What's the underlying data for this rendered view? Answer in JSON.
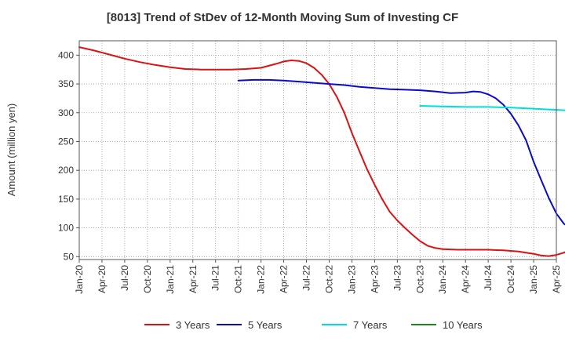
{
  "chart_data": {
    "type": "line",
    "title": "[8013]  Trend of StDev of 12-Month Moving Sum of Investing CF",
    "xlabel": "",
    "ylabel": "Amount (million yen)",
    "ylim": [
      45,
      425
    ],
    "yticks": [
      50,
      100,
      150,
      200,
      250,
      300,
      350,
      400
    ],
    "xlim": [
      "2020-01",
      "2025-04"
    ],
    "xticks": [
      "Jan-20",
      "Apr-20",
      "Jul-20",
      "Oct-20",
      "Jan-21",
      "Apr-21",
      "Jul-21",
      "Oct-21",
      "Jan-22",
      "Apr-22",
      "Jul-22",
      "Oct-22",
      "Jan-23",
      "Apr-23",
      "Jul-23",
      "Oct-23",
      "Jan-24",
      "Apr-24",
      "Jul-24",
      "Oct-24",
      "Jan-25",
      "Apr-25"
    ],
    "grid": true,
    "legend_position": "bottom",
    "series": [
      {
        "name": "3 Years",
        "color": "#dd1111",
        "points": [
          [
            "2020-01",
            414
          ],
          [
            "2020-03",
            408
          ],
          [
            "2020-05",
            401
          ],
          [
            "2020-07",
            394
          ],
          [
            "2020-09",
            388
          ],
          [
            "2020-11",
            383
          ],
          [
            "2021-01",
            379
          ],
          [
            "2021-03",
            376
          ],
          [
            "2021-05",
            375
          ],
          [
            "2021-07",
            375
          ],
          [
            "2021-09",
            375
          ],
          [
            "2021-11",
            376
          ],
          [
            "2022-01",
            378
          ],
          [
            "2022-03",
            385
          ],
          [
            "2022-04",
            389
          ],
          [
            "2022-05",
            391
          ],
          [
            "2022-06",
            390
          ],
          [
            "2022-07",
            386
          ],
          [
            "2022-08",
            378
          ],
          [
            "2022-09",
            366
          ],
          [
            "2022-10",
            350
          ],
          [
            "2022-11",
            328
          ],
          [
            "2022-12",
            300
          ],
          [
            "2023-01",
            265
          ],
          [
            "2023-02",
            233
          ],
          [
            "2023-03",
            202
          ],
          [
            "2023-04",
            175
          ],
          [
            "2023-05",
            150
          ],
          [
            "2023-06",
            128
          ],
          [
            "2023-07",
            113
          ],
          [
            "2023-08",
            100
          ],
          [
            "2023-09",
            88
          ],
          [
            "2023-10",
            77
          ],
          [
            "2023-11",
            69
          ],
          [
            "2023-12",
            65
          ],
          [
            "2024-01",
            63
          ],
          [
            "2024-03",
            62
          ],
          [
            "2024-05",
            62
          ],
          [
            "2024-07",
            62
          ],
          [
            "2024-09",
            61
          ],
          [
            "2024-11",
            59
          ],
          [
            "2025-01",
            55
          ],
          [
            "2025-02",
            52
          ],
          [
            "2025-03",
            51
          ],
          [
            "2025-04",
            53
          ],
          [
            "2025-05",
            57
          ],
          [
            "2025-06",
            63
          ],
          [
            "2025-07",
            70
          ],
          [
            "2025-08",
            77
          ]
        ]
      },
      {
        "name": "5 Years",
        "color": "#0a0acc",
        "points": [
          [
            "2021-10",
            356
          ],
          [
            "2021-12",
            357
          ],
          [
            "2022-02",
            357
          ],
          [
            "2022-04",
            356
          ],
          [
            "2022-06",
            354
          ],
          [
            "2022-08",
            352
          ],
          [
            "2022-10",
            350
          ],
          [
            "2022-12",
            348
          ],
          [
            "2023-02",
            345
          ],
          [
            "2023-04",
            343
          ],
          [
            "2023-06",
            341
          ],
          [
            "2023-08",
            340
          ],
          [
            "2023-10",
            339
          ],
          [
            "2023-12",
            337
          ],
          [
            "2024-02",
            334
          ],
          [
            "2024-04",
            335
          ],
          [
            "2024-05",
            337
          ],
          [
            "2024-06",
            336
          ],
          [
            "2024-07",
            332
          ],
          [
            "2024-08",
            325
          ],
          [
            "2024-09",
            314
          ],
          [
            "2024-10",
            298
          ],
          [
            "2024-11",
            278
          ],
          [
            "2024-12",
            252
          ],
          [
            "2025-01",
            215
          ],
          [
            "2025-02",
            183
          ],
          [
            "2025-03",
            152
          ],
          [
            "2025-04",
            125
          ],
          [
            "2025-05",
            107
          ],
          [
            "2025-06",
            100
          ]
        ]
      },
      {
        "name": "7 Years",
        "color": "#00dddd",
        "points": [
          [
            "2023-10",
            312
          ],
          [
            "2024-01",
            311
          ],
          [
            "2024-04",
            310
          ],
          [
            "2024-07",
            310
          ],
          [
            "2024-10",
            309
          ],
          [
            "2025-01",
            307
          ],
          [
            "2025-04",
            305
          ],
          [
            "2025-07",
            303
          ]
        ]
      },
      {
        "name": "10 Years",
        "color": "#1a8a1a",
        "points": []
      }
    ]
  }
}
